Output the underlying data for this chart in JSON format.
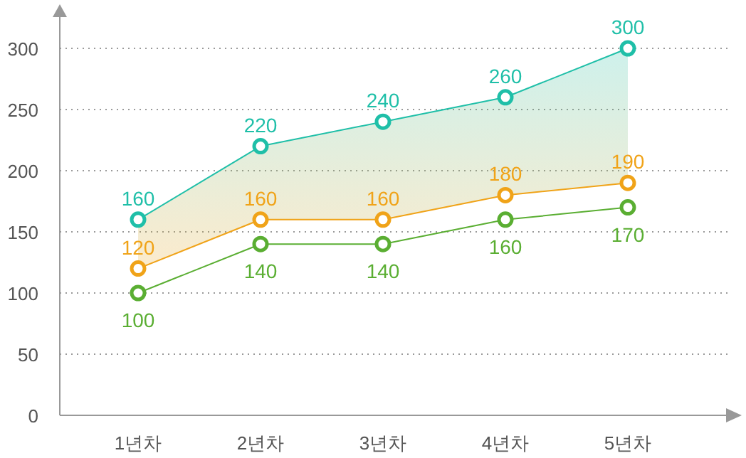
{
  "chart_data": {
    "type": "line",
    "categories": [
      "1년차",
      "2년차",
      "3년차",
      "4년차",
      "5년차"
    ],
    "series": [
      {
        "color": "#1fbfa8",
        "values": [
          160,
          220,
          240,
          260,
          300
        ],
        "lower": [
          120,
          160,
          160,
          180,
          190
        ],
        "upper": [
          160,
          220,
          240,
          260,
          300
        ]
      },
      {
        "color": "#f0a318",
        "values": [
          120,
          160,
          160,
          180,
          190
        ]
      },
      {
        "color": "#5aae32",
        "values": [
          100,
          140,
          140,
          160,
          170
        ]
      }
    ],
    "ylim": [
      0,
      300
    ],
    "yticks": [
      0,
      50,
      100,
      150,
      200,
      250,
      300
    ],
    "grid": "y",
    "marker": "circle",
    "line_style": "solid",
    "data_labels": true
  }
}
